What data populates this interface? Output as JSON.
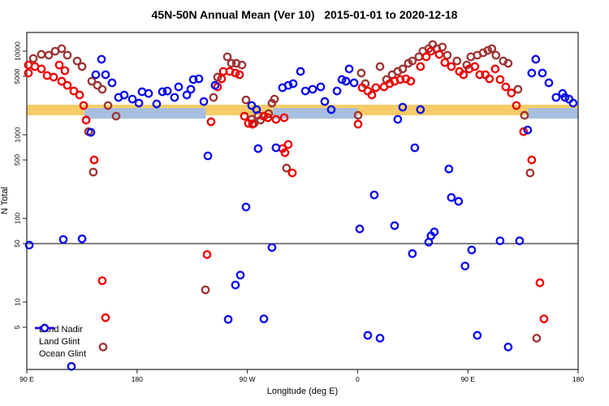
{
  "chart_data": {
    "type": "scatter",
    "title": "45N-50N Annual Mean (Ver 10)   2015-01-01 to 2020-12-18",
    "xlabel": "Longitude (deg E)",
    "ylabel": "N Total",
    "x_axis": {
      "range_deg": [
        0,
        450
      ],
      "ticks": [
        {
          "deg": 0,
          "label": "90 E"
        },
        {
          "deg": 90,
          "label": "180"
        },
        {
          "deg": 180,
          "label": "90 W"
        },
        {
          "deg": 270,
          "label": "0"
        },
        {
          "deg": 360,
          "label": "90 E"
        },
        {
          "deg": 450,
          "label": "180"
        }
      ]
    },
    "y_axis": {
      "scale": "log",
      "tick_values": [
        10000,
        5000,
        1000,
        500,
        100,
        50,
        10,
        5
      ],
      "tick_labels": [
        "10000",
        "5000",
        "1000",
        "500",
        "100",
        "50",
        "10",
        "5"
      ],
      "top_value": 16700,
      "bottom_value": 1.56
    },
    "reference_line_value": 50,
    "grid": "off",
    "legend_position": "bottom-left-inside",
    "bands": [
      {
        "name": "orange-band",
        "color": "#f6cc68",
        "value_range": [
          1710,
          2290
        ],
        "segments_deg": [
          [
            0,
            450
          ]
        ]
      },
      {
        "name": "blue-band",
        "color": "#a7bfdf",
        "value_range": [
          1560,
          2090
        ],
        "segments_deg": [
          [
            47,
            146
          ],
          [
            201,
            270
          ],
          [
            409,
            450
          ]
        ]
      }
    ],
    "series": [
      {
        "name": "Land Nadir",
        "color": "#9e3434",
        "points": [
          [
            5.3,
            8180
          ],
          [
            11.9,
            9150
          ],
          [
            17.9,
            8950
          ],
          [
            23.2,
            9990
          ],
          [
            28.5,
            10700
          ],
          [
            33.1,
            8950
          ],
          [
            41.1,
            7640
          ],
          [
            45.1,
            6540
          ],
          [
            53.0,
            4370
          ],
          [
            57.7,
            3900
          ],
          [
            61.6,
            3500
          ],
          [
            66.3,
            2240
          ],
          [
            72.9,
            1670
          ],
          [
            50.4,
            1090
          ],
          [
            54.3,
            358
          ],
          [
            62.3,
            2.9
          ],
          [
            145.8,
            14
          ],
          [
            152.4,
            2800
          ],
          [
            155.7,
            4890
          ],
          [
            163.7,
            8560
          ],
          [
            167.0,
            7150
          ],
          [
            171.0,
            7150
          ],
          [
            175.6,
            6830
          ],
          [
            178.9,
            2610
          ],
          [
            183.5,
            1530
          ],
          [
            185.5,
            1370
          ],
          [
            188.8,
            1710
          ],
          [
            190.8,
            1500
          ],
          [
            197.4,
            1790
          ],
          [
            200.1,
            2390
          ],
          [
            202.1,
            2670
          ],
          [
            212.0,
            400
          ],
          [
            270.4,
            1710
          ],
          [
            273.0,
            5470
          ],
          [
            276.3,
            4090
          ],
          [
            288.3,
            6540
          ],
          [
            293.6,
            4570
          ],
          [
            298.2,
            5230
          ],
          [
            302.8,
            5720
          ],
          [
            306.8,
            6130
          ],
          [
            311.4,
            7150
          ],
          [
            314.7,
            7640
          ],
          [
            320.0,
            8560
          ],
          [
            323.3,
            9990
          ],
          [
            328.0,
            10700
          ],
          [
            331.3,
            12000
          ],
          [
            334.6,
            10700
          ],
          [
            339.2,
            11200
          ],
          [
            343.2,
            8950
          ],
          [
            351.1,
            7640
          ],
          [
            359.1,
            6830
          ],
          [
            362.4,
            8560
          ],
          [
            367.7,
            8950
          ],
          [
            372.4,
            9560
          ],
          [
            376.3,
            10200
          ],
          [
            379.6,
            10700
          ],
          [
            382.9,
            8950
          ],
          [
            388.9,
            7640
          ],
          [
            392.9,
            7150
          ],
          [
            400.9,
            3500
          ],
          [
            406.2,
            1710
          ],
          [
            410.8,
            350
          ],
          [
            416.1,
            3.7
          ]
        ]
      },
      {
        "name": "Land Glint",
        "color": "#ee0000",
        "points": [
          [
            1.3,
            6830
          ],
          [
            1.3,
            5470
          ],
          [
            6.6,
            6540
          ],
          [
            11.9,
            6130
          ],
          [
            16.6,
            5110
          ],
          [
            21.9,
            4890
          ],
          [
            26.5,
            6830
          ],
          [
            31.1,
            5840
          ],
          [
            28.5,
            4370
          ],
          [
            33.1,
            3900
          ],
          [
            38.4,
            3340
          ],
          [
            43.1,
            2990
          ],
          [
            46.4,
            2240
          ],
          [
            48.4,
            1500
          ],
          [
            55.0,
            500
          ],
          [
            61.6,
            18
          ],
          [
            64.3,
            6.5
          ],
          [
            147.1,
            37
          ],
          [
            150.4,
            1430
          ],
          [
            155.7,
            3740
          ],
          [
            159.0,
            4670
          ],
          [
            160.4,
            5720
          ],
          [
            165.7,
            5720
          ],
          [
            170.3,
            5470
          ],
          [
            173.6,
            5230
          ],
          [
            177.6,
            1670
          ],
          [
            180.9,
            1370
          ],
          [
            184.2,
            1340
          ],
          [
            193.5,
            1670
          ],
          [
            196.8,
            1600
          ],
          [
            203.4,
            1530
          ],
          [
            210.1,
            1600
          ],
          [
            208.7,
            684
          ],
          [
            210.7,
            612
          ],
          [
            213.4,
            766
          ],
          [
            216.7,
            350
          ],
          [
            270.4,
            1340
          ],
          [
            273.7,
            3660
          ],
          [
            278.3,
            3340
          ],
          [
            281.6,
            2990
          ],
          [
            284.9,
            3660
          ],
          [
            291.6,
            3740
          ],
          [
            296.2,
            4090
          ],
          [
            300.2,
            4370
          ],
          [
            304.8,
            4570
          ],
          [
            309.4,
            4670
          ],
          [
            313.4,
            4370
          ],
          [
            321.3,
            6540
          ],
          [
            326.0,
            8560
          ],
          [
            329.9,
            9990
          ],
          [
            336.6,
            9150
          ],
          [
            341.2,
            7310
          ],
          [
            346.5,
            6540
          ],
          [
            353.1,
            5720
          ],
          [
            356.4,
            5230
          ],
          [
            361.1,
            6130
          ],
          [
            365.7,
            6540
          ],
          [
            369.7,
            5230
          ],
          [
            374.3,
            5230
          ],
          [
            377.6,
            4670
          ],
          [
            382.3,
            6130
          ],
          [
            386.3,
            4570
          ],
          [
            390.9,
            3740
          ],
          [
            395.5,
            3160
          ],
          [
            399.6,
            2240
          ],
          [
            405.5,
            1090
          ],
          [
            412.1,
            500
          ],
          [
            418.8,
            17
          ],
          [
            422.1,
            6.3
          ]
        ]
      },
      {
        "name": "Ocean Glint",
        "color": "#0b0bec",
        "points": [
          [
            2.0,
            48
          ],
          [
            29.8,
            56
          ],
          [
            45.1,
            57
          ],
          [
            36.4,
            1.7
          ],
          [
            52.3,
            1070
          ],
          [
            56.3,
            5230
          ],
          [
            61.0,
            8000
          ],
          [
            64.3,
            5230
          ],
          [
            69.6,
            4180
          ],
          [
            74.9,
            2800
          ],
          [
            79.5,
            2990
          ],
          [
            86.2,
            2670
          ],
          [
            91.5,
            2390
          ],
          [
            94.1,
            3270
          ],
          [
            99.4,
            3120
          ],
          [
            106.0,
            2340
          ],
          [
            110.7,
            3270
          ],
          [
            114.7,
            3340
          ],
          [
            120.6,
            2800
          ],
          [
            123.9,
            3740
          ],
          [
            130.6,
            2990
          ],
          [
            133.9,
            3500
          ],
          [
            135.9,
            4570
          ],
          [
            140.5,
            4670
          ],
          [
            144.5,
            2500
          ],
          [
            147.8,
            560
          ],
          [
            153.7,
            3900
          ],
          [
            164.4,
            6.2
          ],
          [
            170.3,
            16
          ],
          [
            174.3,
            21
          ],
          [
            178.9,
            137
          ],
          [
            183.5,
            2240
          ],
          [
            187.5,
            2000
          ],
          [
            188.8,
            684
          ],
          [
            193.5,
            6.3
          ],
          [
            200.1,
            45
          ],
          [
            203.4,
            700
          ],
          [
            208.7,
            3660
          ],
          [
            213.4,
            3900
          ],
          [
            217.4,
            4090
          ],
          [
            223.4,
            5720
          ],
          [
            227.4,
            3340
          ],
          [
            233.3,
            3500
          ],
          [
            239.9,
            3740
          ],
          [
            243.2,
            2500
          ],
          [
            248.5,
            2000
          ],
          [
            253.2,
            3340
          ],
          [
            257.2,
            4570
          ],
          [
            260.5,
            4370
          ],
          [
            263.1,
            6130
          ],
          [
            267.1,
            4180
          ],
          [
            271.7,
            75
          ],
          [
            278.3,
            4.0
          ],
          [
            283.6,
            191
          ],
          [
            288.3,
            3.7
          ],
          [
            300.2,
            82
          ],
          [
            302.8,
            1530
          ],
          [
            306.8,
            2140
          ],
          [
            314.7,
            38
          ],
          [
            316.7,
            700
          ],
          [
            321.3,
            2000
          ],
          [
            328.0,
            52
          ],
          [
            329.9,
            62
          ],
          [
            332.6,
            69
          ],
          [
            344.5,
            390
          ],
          [
            346.5,
            178
          ],
          [
            352.4,
            160
          ],
          [
            357.7,
            27
          ],
          [
            363.1,
            42
          ],
          [
            367.7,
            4.0
          ],
          [
            386.3,
            54
          ],
          [
            392.9,
            2.9
          ],
          [
            402.2,
            54
          ],
          [
            408.8,
            1140
          ],
          [
            412.1,
            5470
          ],
          [
            415.4,
            8000
          ],
          [
            420.8,
            5470
          ],
          [
            426.1,
            4180
          ],
          [
            432.0,
            2800
          ],
          [
            437.3,
            3120
          ],
          [
            439.3,
            2800
          ],
          [
            442.6,
            2670
          ],
          [
            445.9,
            2390
          ]
        ]
      }
    ],
    "axis_color": "#222222",
    "marker": {
      "shape": "open-circle",
      "radius": 4.2,
      "stroke_width": 2.3
    }
  }
}
